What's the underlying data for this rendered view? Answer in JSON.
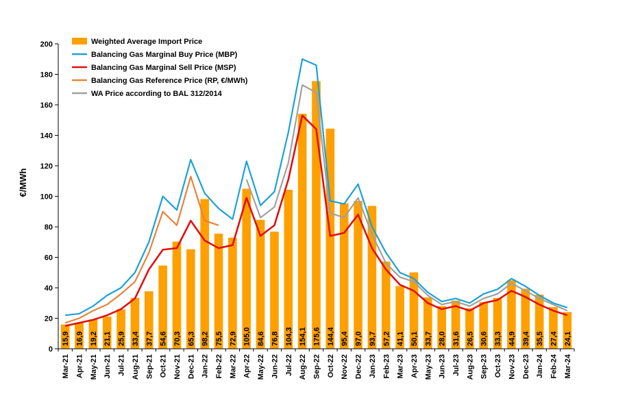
{
  "chart_data": {
    "type": "bar",
    "ylabel": "€/MWh",
    "xlabel": "",
    "ylim": [
      0,
      200
    ],
    "yticks": [
      0,
      20,
      40,
      60,
      80,
      100,
      120,
      140,
      160,
      180,
      200
    ],
    "grid": false,
    "legend_position": "top-left",
    "categories": [
      "Mar-21",
      "Apr-21",
      "May-21",
      "Jun-21",
      "Jul-21",
      "Aug-21",
      "Sep-21",
      "Oct-21",
      "Nov-21",
      "Dec-21",
      "Jan-22",
      "Feb-22",
      "Mar-22",
      "Apr-22",
      "May-22",
      "Jun-22",
      "Jul-22",
      "Aug-22",
      "Sep-22",
      "Oct-22",
      "Nov-22",
      "Dec-22",
      "Jan-23",
      "Feb-23",
      "Mar-23",
      "Apr-23",
      "May-23",
      "Jun-23",
      "Jul-23",
      "Aug-23",
      "Sep-23",
      "Oct-23",
      "Nov-23",
      "Dec-23",
      "Jan-24",
      "Feb-24",
      "Mar-24"
    ],
    "series": [
      {
        "name": "Weighted Average Import Price",
        "kind": "bar",
        "color": "#FFA000",
        "values": [
          15.9,
          16.9,
          19.2,
          21.1,
          25.9,
          33.4,
          37.7,
          54.6,
          70.3,
          65.3,
          98.2,
          75.5,
          72.9,
          105.0,
          84.6,
          76.8,
          104.3,
          154.1,
          175.6,
          144.4,
          95.4,
          97.0,
          93.7,
          57.2,
          41.1,
          50.1,
          33.7,
          28.0,
          31.6,
          26.5,
          30.6,
          33.3,
          44.9,
          39.4,
          35.5,
          27.4,
          24.1
        ],
        "labels": [
          "15,9",
          "16,9",
          "19,2",
          "21,1",
          "25,9",
          "33,4",
          "37,7",
          "54,6",
          "70,3",
          "65,3",
          "98,2",
          "75,5",
          "72,9",
          "105,0",
          "84,6",
          "76,8",
          "104,3",
          "154,1",
          "175,6",
          "144,4",
          "95,4",
          "97,0",
          "93,7",
          "57,2",
          "41,1",
          "50,1",
          "33,7",
          "28,0",
          "31,6",
          "26,5",
          "30,6",
          "33,3",
          "44,9",
          "39,4",
          "35,5",
          "27,4",
          "24,1"
        ]
      },
      {
        "name": "Balancing Gas Marginal Buy Price  (MBP)",
        "kind": "line",
        "color": "#1BA1D8",
        "values": [
          22,
          23,
          28,
          35,
          40,
          50,
          70,
          100,
          91,
          124,
          102,
          92,
          85,
          123,
          94,
          103,
          142,
          190,
          186,
          97,
          95,
          108,
          80,
          63,
          50,
          46,
          37,
          31,
          33,
          30,
          36,
          39,
          46,
          41,
          35,
          30,
          27
        ]
      },
      {
        "name": "Balancing Gas Marginal Sell Price (MSP)",
        "kind": "line",
        "color": "#E01010",
        "values": [
          15,
          17,
          19,
          22,
          26,
          33,
          52,
          65,
          66,
          84,
          71,
          66,
          68,
          99,
          74,
          81,
          111,
          153,
          144,
          74,
          76,
          88,
          66,
          52,
          42,
          38,
          30,
          26,
          28,
          25,
          30,
          32,
          38,
          34,
          29,
          25,
          22
        ]
      },
      {
        "name": "Balancing Gas Reference Price (RP, €/MWh)",
        "kind": "line",
        "color": "#E8823A",
        "values": [
          17,
          20,
          25,
          29,
          36,
          44,
          63,
          90,
          81,
          113,
          84,
          81,
          null,
          null,
          null,
          null,
          null,
          null,
          null,
          null,
          null,
          null,
          null,
          null,
          null,
          null,
          null,
          null,
          null,
          null,
          null,
          null,
          null,
          null,
          null,
          null,
          null
        ]
      },
      {
        "name": "WA Price according to BAL 312/2014",
        "kind": "line",
        "color": "#A0A0A0",
        "values": [
          null,
          null,
          null,
          null,
          null,
          null,
          null,
          null,
          null,
          null,
          84,
          null,
          null,
          111,
          86,
          93,
          122,
          173,
          168,
          89,
          86,
          99,
          75,
          56,
          47,
          44,
          35,
          29,
          31,
          28,
          33,
          36,
          43,
          38,
          33,
          29,
          25
        ]
      }
    ]
  }
}
